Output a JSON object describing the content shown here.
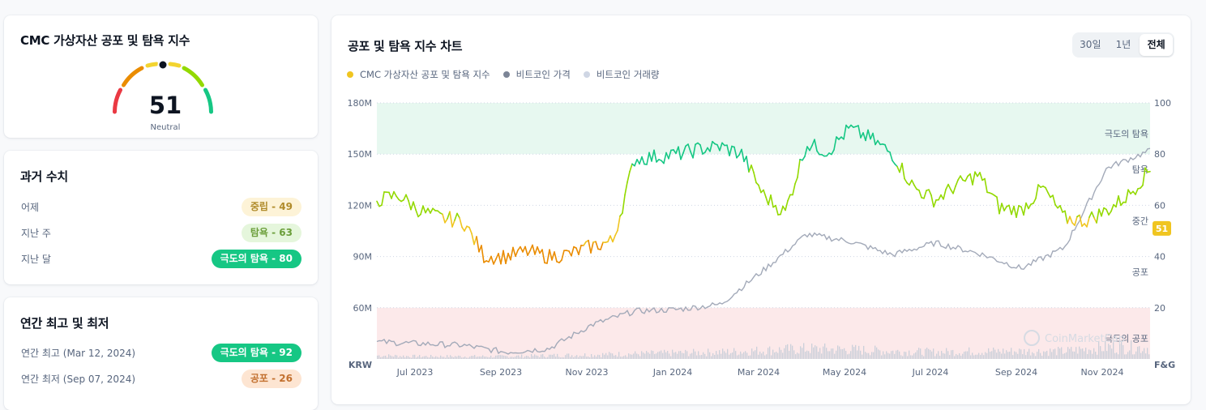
{
  "gauge_card": {
    "title": "CMC 가상자산 공포 및 탐욕 지수",
    "value": "51",
    "label": "Neutral"
  },
  "history_card": {
    "title": "과거 수치",
    "rows": [
      {
        "label": "어제",
        "badge": "중립 - 49",
        "status": "neutral"
      },
      {
        "label": "지난 주",
        "badge": "탐욕 - 63",
        "status": "greed"
      },
      {
        "label": "지난 달",
        "badge": "극도의 탐욕 - 80",
        "status": "extreme-greed"
      }
    ]
  },
  "yearly_card": {
    "title": "연간 최고 및 최저",
    "rows": [
      {
        "label": "연간 최고 (Mar 12, 2024)",
        "badge": "극도의 탐욕 - 92",
        "status": "extreme-greed"
      },
      {
        "label": "연간 최저 (Sep 07, 2024)",
        "badge": "공포 - 26",
        "status": "fear"
      }
    ]
  },
  "chart_card": {
    "title": "공포 및 탐욕 지수 차트",
    "ranges": [
      "30일",
      "1년",
      "전체"
    ],
    "active_range": "전체",
    "legend": [
      "CMC 가상자산 공포 및 탐욕 지수",
      "비트코인 가격",
      "비트코인 거래량"
    ],
    "watermark": "CoinMarketCap",
    "colors": {
      "fng": "#f0c520",
      "price": "#a3aab9",
      "volume": "#cbd0da",
      "extreme_greed": "#16c784",
      "greed": "#93d900",
      "neutral": "#f0c520",
      "fear": "#ea8c00"
    }
  },
  "chart_data": {
    "type": "line",
    "title": "공포 및 탐욕 지수 차트",
    "x_tick_labels": [
      "Jul 2023",
      "Sep 2023",
      "Nov 2023",
      "Jan 2024",
      "Mar 2024",
      "May 2024",
      "Jul 2024",
      "Sep 2024",
      "Nov 2024"
    ],
    "x_range": [
      "Jun 2023",
      "Dec 2024"
    ],
    "left_axis": {
      "unit": "KRW",
      "ticks": [
        "180M",
        "150M",
        "120M",
        "90M",
        "60M"
      ],
      "range": [
        30,
        180
      ]
    },
    "right_axis": {
      "unit": "F&G",
      "ticks": [
        100,
        80,
        60,
        40,
        20
      ],
      "range": [
        0,
        100
      ]
    },
    "zones": [
      {
        "label": "극도의 탐욕",
        "value": 88
      },
      {
        "label": "탐욕",
        "value": 74
      },
      {
        "label": "중간",
        "value": 54
      },
      {
        "label": "공포",
        "value": 34
      },
      {
        "label": "극도의 공포",
        "value": 8
      }
    ],
    "zone_bands": [
      {
        "name": "extreme_greed",
        "from": 80,
        "to": 100
      },
      {
        "name": "extreme_fear",
        "from": 0,
        "to": 20
      }
    ],
    "current_value": 51,
    "series": [
      {
        "name": "CMC 가상자산 공포 및 탐욕 지수",
        "axis": "right",
        "x": [
          0,
          0.5,
          1,
          1.5,
          2,
          2.5,
          3,
          3.5,
          4,
          4.5,
          5,
          5.5,
          6,
          6.5,
          7,
          7.5,
          8,
          8.5,
          9,
          9.5,
          10,
          10.5,
          11,
          11.5,
          12,
          12.5,
          13,
          13.5,
          14,
          14.5,
          15,
          15.5,
          16,
          16.5,
          17,
          17.5,
          18
        ],
        "values": [
          62,
          64,
          58,
          55,
          54,
          40,
          40,
          42,
          40,
          41,
          44,
          46,
          78,
          79,
          80,
          82,
          83,
          80,
          64,
          57,
          84,
          81,
          90,
          86,
          80,
          67,
          62,
          68,
          72,
          59,
          58,
          67,
          55,
          54,
          58,
          64,
          74
        ]
      },
      {
        "name": "비트코인 가격",
        "axis": "left",
        "unit": "M KRW",
        "x": [
          0,
          1,
          2,
          3,
          4,
          5,
          6,
          7,
          8,
          9,
          10,
          11,
          12,
          13,
          14,
          15,
          16,
          17,
          18
        ],
        "values": [
          40,
          39,
          38,
          34,
          36,
          50,
          58,
          59,
          62,
          82,
          103,
          99,
          91,
          98,
          92,
          83,
          95,
          142,
          152
        ]
      },
      {
        "name": "비트코인 거래량",
        "axis": "left",
        "unit": "relative",
        "x": [
          0,
          1,
          2,
          3,
          4,
          5,
          6,
          7,
          8,
          9,
          10,
          11,
          12,
          13,
          14,
          15,
          16,
          17,
          18
        ],
        "values": [
          4,
          3,
          3,
          3,
          4,
          5,
          6,
          7,
          8,
          10,
          12,
          11,
          9,
          8,
          9,
          9,
          9,
          14,
          13
        ]
      }
    ]
  }
}
